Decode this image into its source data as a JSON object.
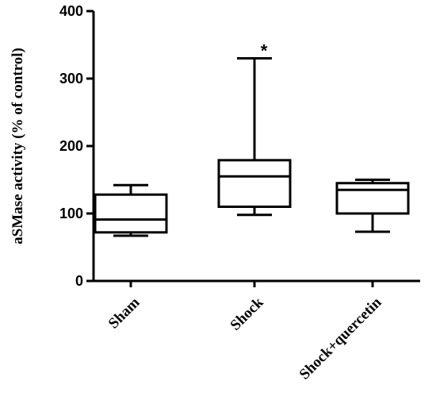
{
  "chart_data": {
    "type": "box",
    "title": "",
    "xlabel": "",
    "ylabel": "aSMase activity (% of control)",
    "ylim": [
      0,
      400
    ],
    "yticks": [
      0,
      100,
      200,
      300,
      400
    ],
    "grid": false,
    "categories": [
      "Sham",
      "Shock",
      "Shock+quercetin"
    ],
    "boxes": [
      {
        "category": "Sham",
        "min": 67,
        "q1": 72,
        "median": 91,
        "q3": 128,
        "max": 142,
        "annotation": ""
      },
      {
        "category": "Shock",
        "min": 98,
        "q1": 110,
        "median": 155,
        "q3": 179,
        "max": 330,
        "annotation": "*"
      },
      {
        "category": "Shock+quercetin",
        "min": 73,
        "q1": 100,
        "median": 135,
        "q3": 145,
        "max": 150,
        "annotation": ""
      }
    ]
  }
}
